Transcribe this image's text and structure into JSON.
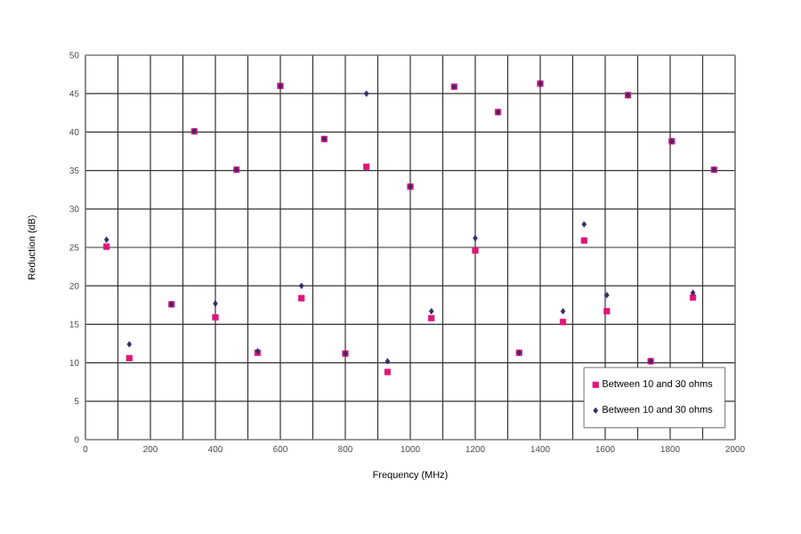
{
  "chart_data": {
    "type": "scatter",
    "xlabel": "Frequency (MHz)",
    "ylabel": "Reduction (dB)",
    "x": [
      65,
      135,
      265,
      335,
      400,
      465,
      530,
      600,
      665,
      735,
      800,
      865,
      930,
      1000,
      1065,
      1135,
      1200,
      1270,
      1335,
      1400,
      1470,
      1535,
      1605,
      1670,
      1740,
      1805,
      1870,
      1935
    ],
    "series": [
      {
        "name": "Between 10 and 30 ohms",
        "color": "#e0157a",
        "marker": "square",
        "values": [
          25.1,
          10.6,
          17.6,
          40.1,
          15.9,
          35.1,
          11.3,
          46.0,
          18.4,
          39.1,
          11.2,
          35.5,
          8.8,
          32.9,
          15.8,
          45.9,
          24.6,
          42.6,
          11.3,
          46.3,
          15.3,
          25.9,
          16.7,
          44.8,
          10.2,
          38.8,
          18.5,
          35.1
        ]
      },
      {
        "name": "Between 10 and 30 ohms",
        "color": "#3a2a6a",
        "marker": "diamond",
        "values": [
          26.0,
          12.4,
          17.6,
          40.1,
          17.7,
          35.1,
          11.5,
          46.0,
          20.0,
          39.1,
          11.2,
          45.0,
          10.2,
          32.9,
          16.7,
          45.9,
          26.2,
          42.6,
          11.3,
          46.3,
          16.7,
          28.0,
          18.8,
          44.8,
          10.2,
          38.8,
          19.1,
          35.1
        ]
      }
    ],
    "xlim": [
      0,
      2000
    ],
    "xticks": [
      0,
      {
        "value": 100,
        "label": null
      },
      200,
      {
        "value": 300,
        "label": null
      },
      400,
      {
        "value": 500,
        "label": null
      },
      600,
      {
        "value": 700,
        "label": null
      },
      800,
      {
        "value": 900,
        "label": null
      },
      1000,
      {
        "value": 1100,
        "label": null
      },
      1200,
      {
        "value": 1300,
        "label": null
      },
      1400,
      {
        "value": 1500,
        "label": null
      },
      1600,
      {
        "value": 1700,
        "label": null
      },
      1800,
      {
        "value": 1900,
        "label": null
      },
      2000
    ],
    "ylim": [
      0,
      50
    ],
    "yticks": [
      0,
      5,
      10,
      15,
      20,
      25,
      30,
      35,
      40,
      45,
      50
    ],
    "grid": true,
    "legend": "bottom right"
  }
}
